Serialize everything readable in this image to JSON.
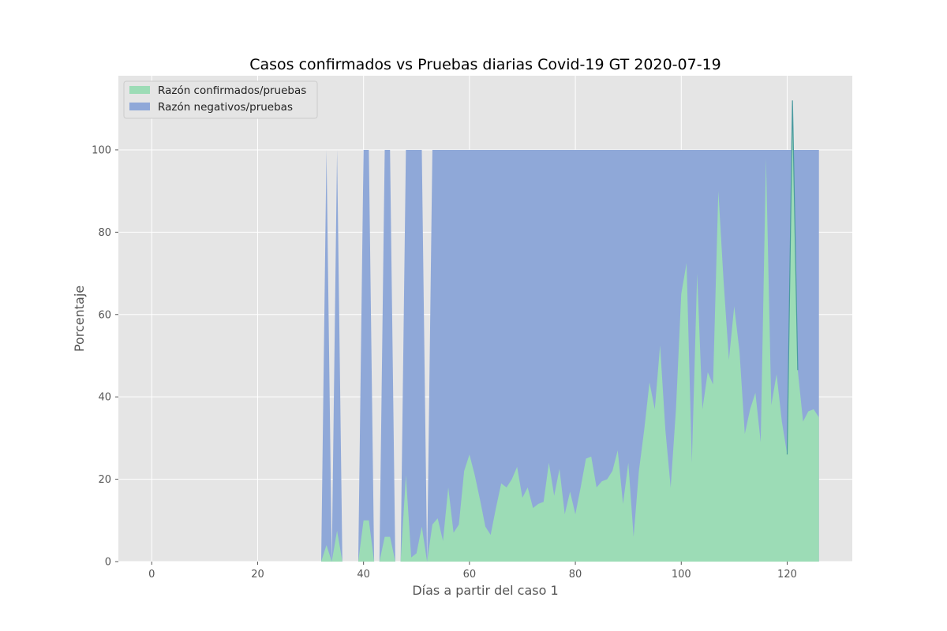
{
  "chart_data": {
    "type": "area",
    "title": "Casos confirmados vs Pruebas diarias Covid-19 GT 2020-07-19",
    "xlabel": "Días a partir del caso 1",
    "ylabel": "Porcentaje",
    "xlim": [
      -6.3,
      132.3
    ],
    "ylim": [
      0,
      118
    ],
    "xticks": [
      0,
      20,
      40,
      60,
      80,
      100,
      120
    ],
    "yticks": [
      0,
      20,
      40,
      60,
      80,
      100
    ],
    "grid": true,
    "legend_position": "top-left",
    "colors": {
      "background": "#e5e5e5",
      "grid": "#ffffff",
      "confirmed": "#9cdcb6",
      "negative": "#8fa8d8",
      "spike": "#4a9aa0"
    },
    "series": [
      {
        "name": "Razón confirmados/pruebas",
        "color": "#9cdcb6",
        "points": [
          [
            32,
            0
          ],
          [
            33,
            4
          ],
          [
            34,
            0
          ],
          [
            35,
            7.5
          ],
          [
            36,
            0
          ],
          [
            39,
            0
          ],
          [
            40,
            10
          ],
          [
            41,
            10
          ],
          [
            42,
            0
          ],
          [
            43,
            0
          ],
          [
            44,
            6
          ],
          [
            45,
            6
          ],
          [
            46,
            0
          ],
          [
            47,
            0
          ],
          [
            48,
            21
          ],
          [
            49,
            1
          ],
          [
            50,
            2
          ],
          [
            51,
            8.5
          ],
          [
            52,
            0
          ],
          [
            53,
            9
          ],
          [
            54,
            10.5
          ],
          [
            55,
            5
          ],
          [
            56,
            18
          ],
          [
            57,
            7
          ],
          [
            58,
            9
          ],
          [
            59,
            22
          ],
          [
            60,
            26
          ],
          [
            61,
            21
          ],
          [
            62,
            15
          ],
          [
            63,
            8.5
          ],
          [
            64,
            6.5
          ],
          [
            65,
            13
          ],
          [
            66,
            19
          ],
          [
            67,
            18
          ],
          [
            68,
            20
          ],
          [
            69,
            23
          ],
          [
            70,
            15.5
          ],
          [
            71,
            18
          ],
          [
            72,
            13
          ],
          [
            73,
            14
          ],
          [
            74,
            14.5
          ],
          [
            75,
            24
          ],
          [
            76,
            16
          ],
          [
            77,
            22.5
          ],
          [
            78,
            11.5
          ],
          [
            79,
            17
          ],
          [
            80,
            11.5
          ],
          [
            81,
            18
          ],
          [
            82,
            25
          ],
          [
            83,
            25.5
          ],
          [
            84,
            18
          ],
          [
            85,
            19.5
          ],
          [
            86,
            20
          ],
          [
            87,
            22
          ],
          [
            88,
            27
          ],
          [
            89,
            14
          ],
          [
            90,
            24
          ],
          [
            91,
            6
          ],
          [
            92,
            22
          ],
          [
            93,
            32
          ],
          [
            94,
            43.5
          ],
          [
            95,
            37
          ],
          [
            96,
            52.5
          ],
          [
            97,
            32
          ],
          [
            98,
            18
          ],
          [
            99,
            37
          ],
          [
            100,
            65
          ],
          [
            101,
            72.5
          ],
          [
            102,
            24
          ],
          [
            103,
            70
          ],
          [
            104,
            37
          ],
          [
            105,
            46
          ],
          [
            106,
            43
          ],
          [
            107,
            90
          ],
          [
            108,
            68
          ],
          [
            109,
            49
          ],
          [
            110,
            62
          ],
          [
            111,
            51
          ],
          [
            112,
            31
          ],
          [
            113,
            37
          ],
          [
            114,
            41
          ],
          [
            115,
            29
          ],
          [
            116,
            98
          ],
          [
            117,
            38
          ],
          [
            118,
            45.5
          ],
          [
            119,
            34
          ],
          [
            120,
            26
          ],
          [
            121,
            112
          ],
          [
            122,
            46.5
          ],
          [
            123,
            34
          ],
          [
            124,
            36.5
          ],
          [
            125,
            37
          ],
          [
            126,
            35
          ]
        ]
      },
      {
        "name": "Razón negativos/pruebas",
        "color": "#8fa8d8",
        "points": [
          [
            32,
            0
          ],
          [
            33,
            100
          ],
          [
            34,
            0
          ],
          [
            35,
            100
          ],
          [
            36,
            0
          ],
          [
            39,
            0
          ],
          [
            40,
            100
          ],
          [
            41,
            100
          ],
          [
            42,
            0
          ],
          [
            43,
            0
          ],
          [
            44,
            100
          ],
          [
            45,
            100
          ],
          [
            46,
            0
          ],
          [
            47,
            0
          ],
          [
            48,
            100
          ],
          [
            49,
            100
          ],
          [
            50,
            100
          ],
          [
            51,
            100
          ],
          [
            52,
            0
          ],
          [
            53,
            100
          ],
          [
            54,
            100
          ],
          [
            60,
            100
          ],
          [
            80,
            100
          ],
          [
            100,
            100
          ],
          [
            120,
            100
          ],
          [
            121,
            100
          ],
          [
            122,
            100
          ],
          [
            126,
            100
          ]
        ]
      }
    ]
  }
}
